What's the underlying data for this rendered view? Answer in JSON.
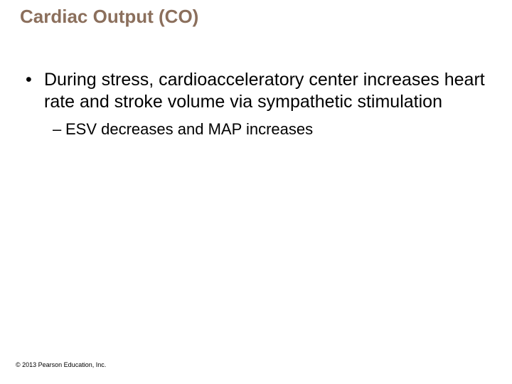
{
  "slide": {
    "title": "Cardiac Output (CO)",
    "bullet1": "During stress, cardioacceleratory center increases heart rate and stroke volume via sympathetic stimulation",
    "bullet2": "ESV decreases and MAP increases",
    "copyright": "© 2013 Pearson Education, Inc."
  },
  "style": {
    "title_color": "#8b6f5c",
    "body_color": "#000000",
    "background_color": "#ffffff",
    "title_fontsize": 26,
    "bullet1_fontsize": 25,
    "bullet2_fontsize": 22,
    "copyright_fontsize": 9,
    "font_family": "Arial"
  }
}
